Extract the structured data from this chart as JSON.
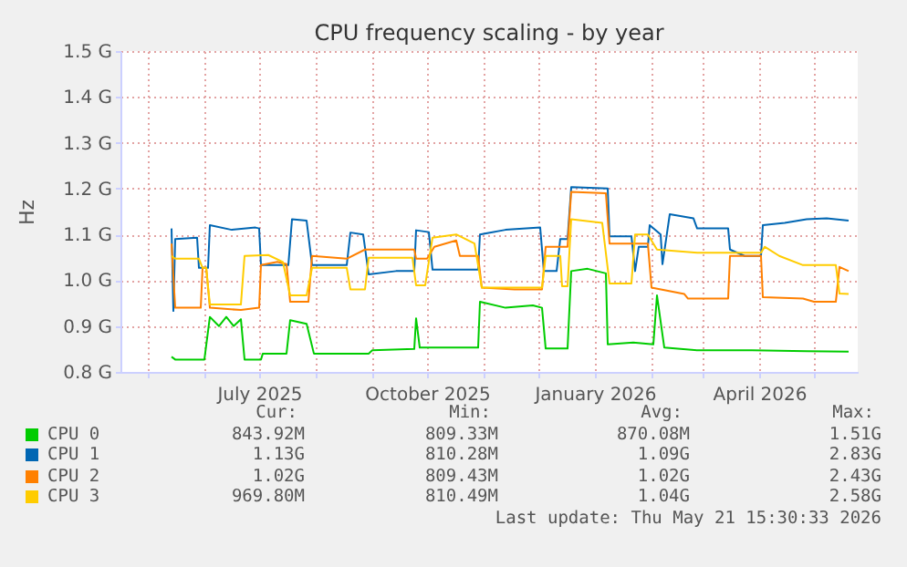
{
  "chart_data": {
    "type": "line",
    "title": "CPU frequency scaling - by year",
    "ylabel": "Hz",
    "legend": "bottom",
    "grid": true,
    "xlim": [
      "2025-04-16",
      "2026-05-25"
    ],
    "xticks": [
      {
        "value": "2025-05-01",
        "label": null
      },
      {
        "value": "2025-06-01",
        "label": null
      },
      {
        "value": "2025-07-01",
        "label": "July 2025"
      },
      {
        "value": "2025-08-01",
        "label": null
      },
      {
        "value": "2025-09-01",
        "label": null
      },
      {
        "value": "2025-10-01",
        "label": "October 2025"
      },
      {
        "value": "2025-11-01",
        "label": null
      },
      {
        "value": "2025-12-01",
        "label": null
      },
      {
        "value": "2026-01-01",
        "label": "January 2026"
      },
      {
        "value": "2026-02-01",
        "label": null
      },
      {
        "value": "2026-03-01",
        "label": null
      },
      {
        "value": "2026-04-01",
        "label": "April 2026"
      },
      {
        "value": "2026-05-01",
        "label": null
      }
    ],
    "ylim": [
      0.8,
      1.5
    ],
    "yticks": [
      {
        "value": 0.8,
        "label": "0.8 G"
      },
      {
        "value": 0.9,
        "label": "0.9 G"
      },
      {
        "value": 1.0,
        "label": "1.0 G"
      },
      {
        "value": 1.1,
        "label": "1.1 G"
      },
      {
        "value": 1.2,
        "label": "1.2 G"
      },
      {
        "value": 1.3,
        "label": "1.3 G"
      },
      {
        "value": 1.4,
        "label": "1.4 G"
      },
      {
        "value": 1.5,
        "label": "1.5 G"
      }
    ],
    "series": [
      {
        "name": "CPU 0",
        "color": "#00cc00",
        "x": [
          "2025-05-14",
          "2025-05-16",
          "2025-06-01",
          "2025-06-04",
          "2025-06-09",
          "2025-06-13",
          "2025-06-17",
          "2025-06-21",
          "2025-06-23",
          "2025-07-02",
          "2025-07-03",
          "2025-07-16",
          "2025-07-18",
          "2025-07-27",
          "2025-07-31",
          "2025-08-30",
          "2025-09-01",
          "2025-09-24",
          "2025-09-25",
          "2025-09-27",
          "2025-10-07",
          "2025-10-29",
          "2025-10-30",
          "2025-11-13",
          "2025-11-28",
          "2025-12-03",
          "2025-12-05",
          "2025-12-17",
          "2025-12-19",
          "2025-12-28",
          "2026-01-07",
          "2026-01-08",
          "2026-01-22",
          "2026-02-02",
          "2026-02-04",
          "2026-02-08",
          "2026-02-26",
          "2026-03-28",
          "2026-04-27",
          "2026-05-20"
        ],
        "values": [
          0.833,
          0.827,
          0.827,
          0.92,
          0.9,
          0.92,
          0.9,
          0.915,
          0.827,
          0.827,
          0.84,
          0.84,
          0.913,
          0.905,
          0.84,
          0.84,
          0.847,
          0.85,
          0.917,
          0.853,
          0.853,
          0.853,
          0.953,
          0.94,
          0.945,
          0.94,
          0.851,
          0.851,
          1.02,
          1.025,
          1.015,
          0.86,
          0.864,
          0.86,
          0.967,
          0.853,
          0.847,
          0.847,
          0.845,
          0.844
        ]
      },
      {
        "name": "CPU 1",
        "color": "#0066b3",
        "x": [
          "2025-05-14",
          "2025-05-15",
          "2025-05-16",
          "2025-05-28",
          "2025-05-29",
          "2025-06-03",
          "2025-06-04",
          "2025-06-16",
          "2025-06-29",
          "2025-07-01",
          "2025-07-02",
          "2025-07-17",
          "2025-07-19",
          "2025-07-27",
          "2025-07-30",
          "2025-08-18",
          "2025-08-20",
          "2025-08-27",
          "2025-08-30",
          "2025-09-14",
          "2025-09-24",
          "2025-09-25",
          "2025-10-02",
          "2025-10-04",
          "2025-10-29",
          "2025-10-30",
          "2025-11-13",
          "2025-12-02",
          "2025-12-04",
          "2025-12-11",
          "2025-12-13",
          "2025-12-17",
          "2025-12-19",
          "2026-01-08",
          "2026-01-09",
          "2026-01-21",
          "2026-01-23",
          "2026-01-25",
          "2026-01-30",
          "2026-01-31",
          "2026-02-06",
          "2026-02-07",
          "2026-02-11",
          "2026-02-24",
          "2026-02-26",
          "2026-03-15",
          "2026-03-16",
          "2026-03-24",
          "2026-04-02",
          "2026-04-03",
          "2026-04-15",
          "2026-04-27",
          "2026-05-08",
          "2026-05-20"
        ],
        "values": [
          1.113,
          0.933,
          1.09,
          1.093,
          1.027,
          1.027,
          1.12,
          1.11,
          1.115,
          1.113,
          1.033,
          1.033,
          1.133,
          1.13,
          1.033,
          1.033,
          1.104,
          1.1,
          1.013,
          1.02,
          1.02,
          1.109,
          1.105,
          1.023,
          1.023,
          1.1,
          1.11,
          1.115,
          1.02,
          1.02,
          1.09,
          1.09,
          1.203,
          1.2,
          1.096,
          1.096,
          1.02,
          1.073,
          1.073,
          1.12,
          1.1,
          1.035,
          1.144,
          1.135,
          1.113,
          1.113,
          1.067,
          1.053,
          1.053,
          1.12,
          1.125,
          1.133,
          1.135,
          1.13
        ]
      },
      {
        "name": "CPU 2",
        "color": "#ff8000",
        "x": [
          "2025-05-14",
          "2025-05-16",
          "2025-05-30",
          "2025-05-31",
          "2025-06-02",
          "2025-06-04",
          "2025-06-21",
          "2025-07-01",
          "2025-07-02",
          "2025-07-11",
          "2025-07-16",
          "2025-07-18",
          "2025-07-28",
          "2025-07-30",
          "2025-08-18",
          "2025-08-28",
          "2025-09-24",
          "2025-09-25",
          "2025-10-01",
          "2025-10-05",
          "2025-10-17",
          "2025-10-19",
          "2025-10-29",
          "2025-10-31",
          "2025-11-18",
          "2025-12-03",
          "2025-12-05",
          "2025-12-17",
          "2025-12-19",
          "2026-01-07",
          "2026-01-09",
          "2026-01-30",
          "2026-02-01",
          "2026-02-19",
          "2026-02-21",
          "2026-03-15",
          "2026-03-16",
          "2026-04-02",
          "2026-04-03",
          "2026-04-25",
          "2026-05-01",
          "2026-05-13",
          "2026-05-15",
          "2026-05-20"
        ],
        "values": [
          1.08,
          0.94,
          0.94,
          1.027,
          1.027,
          0.94,
          0.935,
          0.94,
          1.033,
          1.04,
          1.035,
          0.953,
          0.953,
          1.053,
          1.047,
          1.067,
          1.067,
          1.047,
          1.047,
          1.073,
          1.087,
          1.053,
          1.053,
          0.984,
          0.98,
          0.98,
          1.073,
          1.073,
          1.193,
          1.19,
          1.08,
          1.08,
          0.984,
          0.97,
          0.96,
          0.96,
          1.053,
          1.053,
          0.963,
          0.96,
          0.953,
          0.953,
          1.029,
          1.02
        ]
      },
      {
        "name": "CPU 3",
        "color": "#ffcc00",
        "x": [
          "2025-05-14",
          "2025-05-16",
          "2025-05-29",
          "2025-05-31",
          "2025-06-02",
          "2025-06-04",
          "2025-06-21",
          "2025-06-23",
          "2025-07-06",
          "2025-07-14",
          "2025-07-18",
          "2025-07-27",
          "2025-07-30",
          "2025-08-18",
          "2025-08-20",
          "2025-08-28",
          "2025-08-30",
          "2025-09-23",
          "2025-09-25",
          "2025-09-30",
          "2025-10-04",
          "2025-10-17",
          "2025-10-27",
          "2025-10-31",
          "2025-12-03",
          "2025-12-05",
          "2025-12-13",
          "2025-12-14",
          "2025-12-17",
          "2025-12-19",
          "2026-01-05",
          "2026-01-09",
          "2026-01-21",
          "2026-01-23",
          "2026-01-30",
          "2026-02-04",
          "2026-02-26",
          "2026-03-15",
          "2026-04-02",
          "2026-04-04",
          "2026-04-12",
          "2026-04-25",
          "2026-05-13",
          "2026-05-15",
          "2026-05-20"
        ],
        "values": [
          1.053,
          1.047,
          1.047,
          1.027,
          1.027,
          0.947,
          0.947,
          1.053,
          1.055,
          1.04,
          0.967,
          0.967,
          1.027,
          1.027,
          0.98,
          0.98,
          1.049,
          1.049,
          0.989,
          0.989,
          1.093,
          1.1,
          1.08,
          0.984,
          0.984,
          1.053,
          1.053,
          0.987,
          0.987,
          1.133,
          1.125,
          0.993,
          0.993,
          1.1,
          1.1,
          1.067,
          1.06,
          1.06,
          1.06,
          1.073,
          1.053,
          1.033,
          1.033,
          0.971,
          0.97
        ]
      }
    ],
    "annotations": [
      "Cur:",
      "Min:",
      "Avg:",
      "Max:",
      "843.92M",
      "809.33M",
      "870.08M",
      "1.51G",
      "1.13G",
      "810.28M",
      "1.09G",
      "2.83G",
      "1.02G",
      "809.43M",
      "1.02G",
      "2.43G",
      "969.80M",
      "810.49M",
      "1.04G",
      "2.58G",
      "Last update: Thu May 21 15:30:33 2026"
    ]
  }
}
